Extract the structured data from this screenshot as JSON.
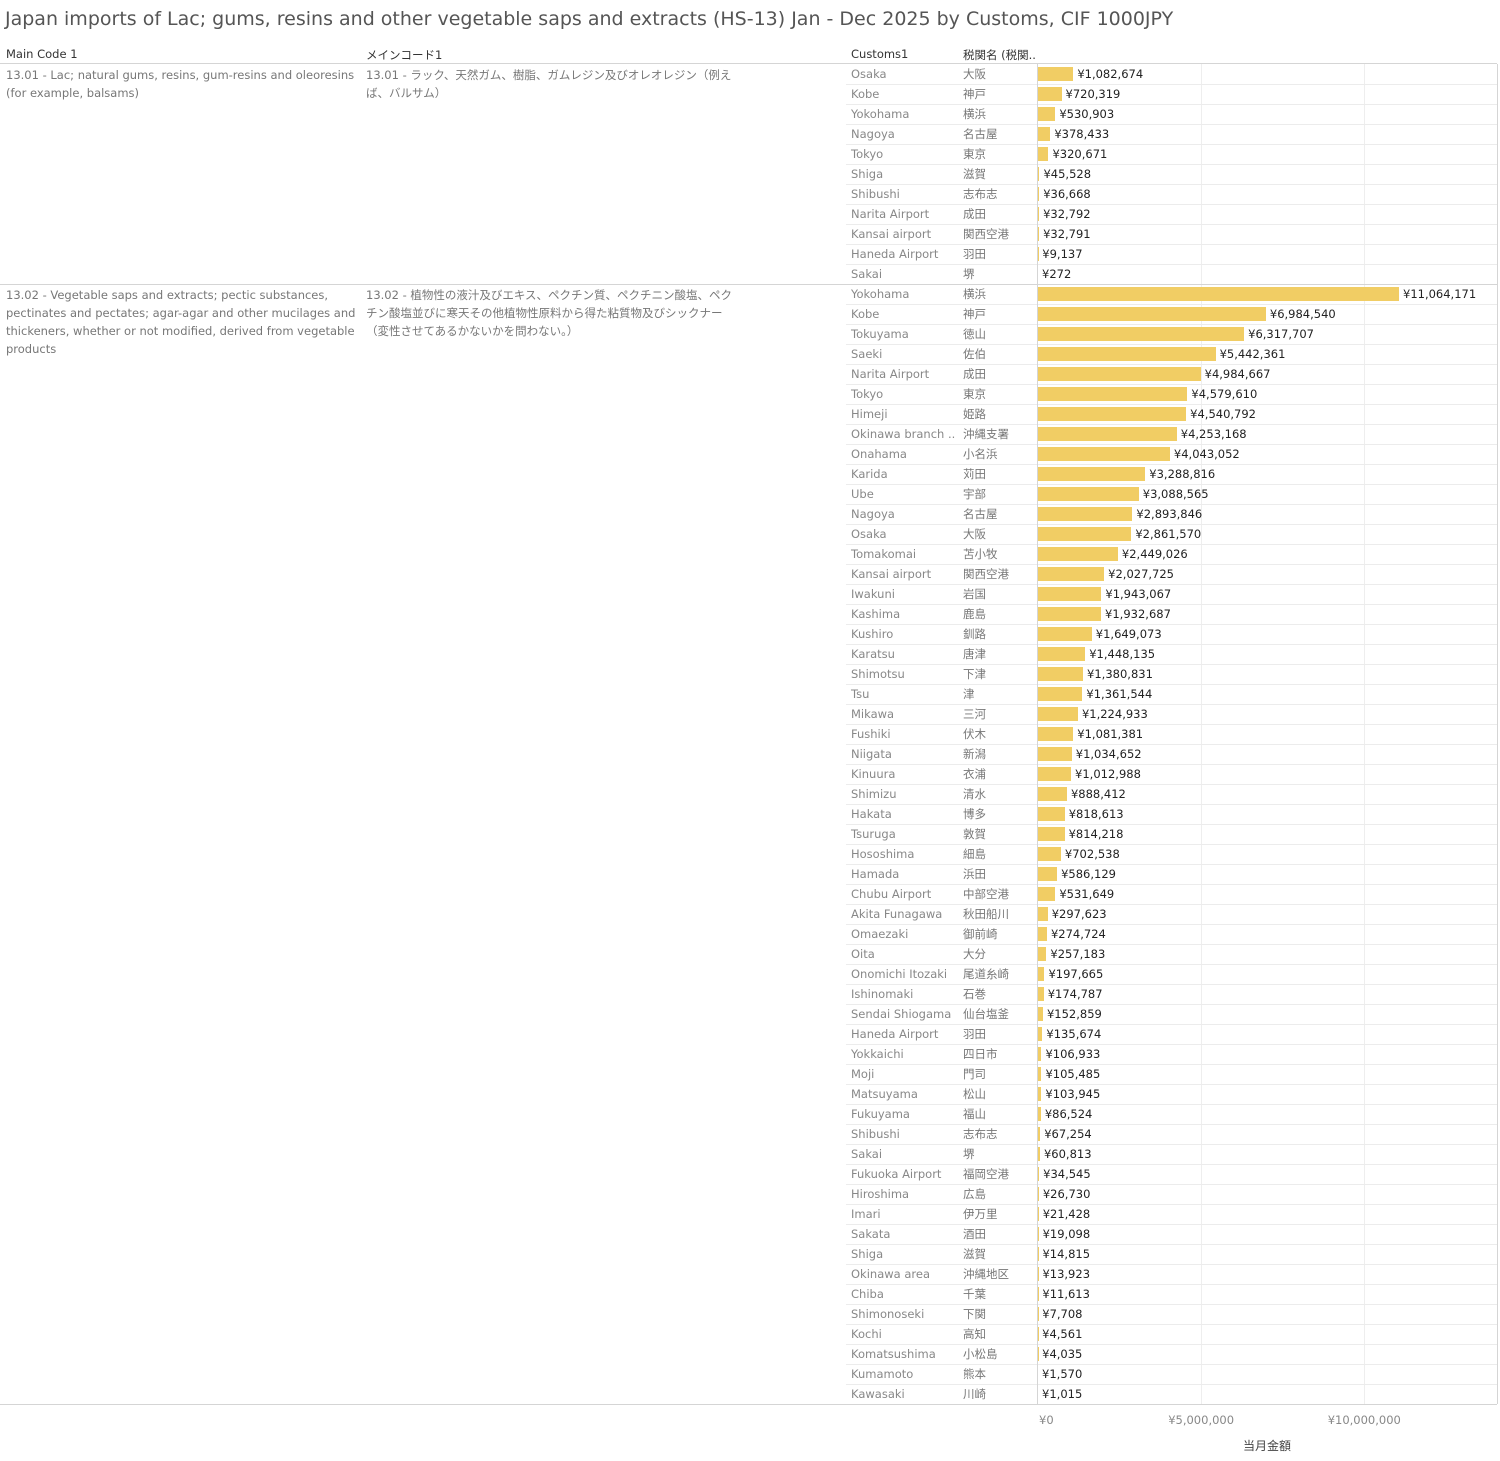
{
  "title": "Japan imports of Lac; gums, resins and other vegetable saps and extracts (HS-13) Jan - Dec 2025 by Customs, CIF 1000JPY",
  "headers": {
    "main_code": "Main Code 1",
    "main_code_jp": "メインコード1",
    "customs": "Customs1",
    "customs_jp": "税関名 (税関.."
  },
  "colors": {
    "bar": "#f1cd64"
  },
  "chart_data": {
    "type": "bar",
    "orientation": "horizontal",
    "title": "Japan imports of Lac; gums, resins and other vegetable saps and extracts (HS-13) Jan - Dec 2025 by Customs, CIF 1000JPY",
    "xlabel": "当月金額",
    "xlim": [
      0,
      14000000
    ],
    "xticks": [
      "¥0",
      "¥5,000,000",
      "¥10,000,000"
    ],
    "xtick_values": [
      0,
      5000000,
      10000000
    ],
    "groups": [
      {
        "code": "13.01 - Lac; natural gums, resins, gum-resins and oleoresins (for example, balsams)",
        "code_jp": "13.01 - ラック、天然ガム、樹脂、ガムレジン及びオレオレジン（例えば、バルサム）",
        "rows": [
          {
            "customs": "Osaka",
            "customs_jp": "大阪",
            "value": 1082674,
            "label": "¥1,082,674"
          },
          {
            "customs": "Kobe",
            "customs_jp": "神戸",
            "value": 720319,
            "label": "¥720,319"
          },
          {
            "customs": "Yokohama",
            "customs_jp": "横浜",
            "value": 530903,
            "label": "¥530,903"
          },
          {
            "customs": "Nagoya",
            "customs_jp": "名古屋",
            "value": 378433,
            "label": "¥378,433"
          },
          {
            "customs": "Tokyo",
            "customs_jp": "東京",
            "value": 320671,
            "label": "¥320,671"
          },
          {
            "customs": "Shiga",
            "customs_jp": "滋賀",
            "value": 45528,
            "label": "¥45,528"
          },
          {
            "customs": "Shibushi",
            "customs_jp": "志布志",
            "value": 36668,
            "label": "¥36,668"
          },
          {
            "customs": "Narita Airport",
            "customs_jp": "成田",
            "value": 32792,
            "label": "¥32,792"
          },
          {
            "customs": "Kansai airport",
            "customs_jp": "関西空港",
            "value": 32791,
            "label": "¥32,791"
          },
          {
            "customs": "Haneda Airport",
            "customs_jp": "羽田",
            "value": 9137,
            "label": "¥9,137"
          },
          {
            "customs": "Sakai",
            "customs_jp": "堺",
            "value": 272,
            "label": "¥272"
          }
        ]
      },
      {
        "code": "13.02 - Vegetable saps and extracts; pectic substances, pectinates and pectates; agar-agar and other mucilages and thickeners, whether or not modified, derived from vegetable products",
        "code_jp": "13.02 - 植物性の液汁及びエキス、ペクチン質、ペクチニン酸塩、ペクチン酸塩並びに寒天その他植物性原料から得た粘質物及びシックナー（変性させてあるかないかを問わない。）",
        "rows": [
          {
            "customs": "Yokohama",
            "customs_jp": "横浜",
            "value": 11064171,
            "label": "¥11,064,171"
          },
          {
            "customs": "Kobe",
            "customs_jp": "神戸",
            "value": 6984540,
            "label": "¥6,984,540"
          },
          {
            "customs": "Tokuyama",
            "customs_jp": "徳山",
            "value": 6317707,
            "label": "¥6,317,707"
          },
          {
            "customs": "Saeki",
            "customs_jp": "佐伯",
            "value": 5442361,
            "label": "¥5,442,361"
          },
          {
            "customs": "Narita Airport",
            "customs_jp": "成田",
            "value": 4984667,
            "label": "¥4,984,667"
          },
          {
            "customs": "Tokyo",
            "customs_jp": "東京",
            "value": 4579610,
            "label": "¥4,579,610"
          },
          {
            "customs": "Himeji",
            "customs_jp": "姫路",
            "value": 4540792,
            "label": "¥4,540,792"
          },
          {
            "customs": "Okinawa branch ..",
            "customs_jp": "沖縄支署",
            "value": 4253168,
            "label": "¥4,253,168"
          },
          {
            "customs": "Onahama",
            "customs_jp": "小名浜",
            "value": 4043052,
            "label": "¥4,043,052"
          },
          {
            "customs": "Karida",
            "customs_jp": "苅田",
            "value": 3288816,
            "label": "¥3,288,816"
          },
          {
            "customs": "Ube",
            "customs_jp": "宇部",
            "value": 3088565,
            "label": "¥3,088,565"
          },
          {
            "customs": "Nagoya",
            "customs_jp": "名古屋",
            "value": 2893846,
            "label": "¥2,893,846"
          },
          {
            "customs": "Osaka",
            "customs_jp": "大阪",
            "value": 2861570,
            "label": "¥2,861,570"
          },
          {
            "customs": "Tomakomai",
            "customs_jp": "苫小牧",
            "value": 2449026,
            "label": "¥2,449,026"
          },
          {
            "customs": "Kansai airport",
            "customs_jp": "関西空港",
            "value": 2027725,
            "label": "¥2,027,725"
          },
          {
            "customs": "Iwakuni",
            "customs_jp": "岩国",
            "value": 1943067,
            "label": "¥1,943,067"
          },
          {
            "customs": "Kashima",
            "customs_jp": "鹿島",
            "value": 1932687,
            "label": "¥1,932,687"
          },
          {
            "customs": "Kushiro",
            "customs_jp": "釧路",
            "value": 1649073,
            "label": "¥1,649,073"
          },
          {
            "customs": "Karatsu",
            "customs_jp": "唐津",
            "value": 1448135,
            "label": "¥1,448,135"
          },
          {
            "customs": "Shimotsu",
            "customs_jp": "下津",
            "value": 1380831,
            "label": "¥1,380,831"
          },
          {
            "customs": "Tsu",
            "customs_jp": "津",
            "value": 1361544,
            "label": "¥1,361,544"
          },
          {
            "customs": "Mikawa",
            "customs_jp": "三河",
            "value": 1224933,
            "label": "¥1,224,933"
          },
          {
            "customs": "Fushiki",
            "customs_jp": "伏木",
            "value": 1081381,
            "label": "¥1,081,381"
          },
          {
            "customs": "Niigata",
            "customs_jp": "新潟",
            "value": 1034652,
            "label": "¥1,034,652"
          },
          {
            "customs": "Kinuura",
            "customs_jp": "衣浦",
            "value": 1012988,
            "label": "¥1,012,988"
          },
          {
            "customs": "Shimizu",
            "customs_jp": "清水",
            "value": 888412,
            "label": "¥888,412"
          },
          {
            "customs": "Hakata",
            "customs_jp": "博多",
            "value": 818613,
            "label": "¥818,613"
          },
          {
            "customs": "Tsuruga",
            "customs_jp": "敦賀",
            "value": 814218,
            "label": "¥814,218"
          },
          {
            "customs": "Hososhima",
            "customs_jp": "細島",
            "value": 702538,
            "label": "¥702,538"
          },
          {
            "customs": "Hamada",
            "customs_jp": "浜田",
            "value": 586129,
            "label": "¥586,129"
          },
          {
            "customs": "Chubu Airport",
            "customs_jp": "中部空港",
            "value": 531649,
            "label": "¥531,649"
          },
          {
            "customs": "Akita Funagawa",
            "customs_jp": "秋田船川",
            "value": 297623,
            "label": "¥297,623"
          },
          {
            "customs": "Omaezaki",
            "customs_jp": "御前崎",
            "value": 274724,
            "label": "¥274,724"
          },
          {
            "customs": "Oita",
            "customs_jp": "大分",
            "value": 257183,
            "label": "¥257,183"
          },
          {
            "customs": "Onomichi Itozaki",
            "customs_jp": "尾道糸崎",
            "value": 197665,
            "label": "¥197,665"
          },
          {
            "customs": "Ishinomaki",
            "customs_jp": "石巻",
            "value": 174787,
            "label": "¥174,787"
          },
          {
            "customs": "Sendai Shiogama",
            "customs_jp": "仙台塩釜",
            "value": 152859,
            "label": "¥152,859"
          },
          {
            "customs": "Haneda Airport",
            "customs_jp": "羽田",
            "value": 135674,
            "label": "¥135,674"
          },
          {
            "customs": "Yokkaichi",
            "customs_jp": "四日市",
            "value": 106933,
            "label": "¥106,933"
          },
          {
            "customs": "Moji",
            "customs_jp": "門司",
            "value": 105485,
            "label": "¥105,485"
          },
          {
            "customs": "Matsuyama",
            "customs_jp": "松山",
            "value": 103945,
            "label": "¥103,945"
          },
          {
            "customs": "Fukuyama",
            "customs_jp": "福山",
            "value": 86524,
            "label": "¥86,524"
          },
          {
            "customs": "Shibushi",
            "customs_jp": "志布志",
            "value": 67254,
            "label": "¥67,254"
          },
          {
            "customs": "Sakai",
            "customs_jp": "堺",
            "value": 60813,
            "label": "¥60,813"
          },
          {
            "customs": "Fukuoka Airport",
            "customs_jp": "福岡空港",
            "value": 34545,
            "label": "¥34,545"
          },
          {
            "customs": "Hiroshima",
            "customs_jp": "広島",
            "value": 26730,
            "label": "¥26,730"
          },
          {
            "customs": "Imari",
            "customs_jp": "伊万里",
            "value": 21428,
            "label": "¥21,428"
          },
          {
            "customs": "Sakata",
            "customs_jp": "酒田",
            "value": 19098,
            "label": "¥19,098"
          },
          {
            "customs": "Shiga",
            "customs_jp": "滋賀",
            "value": 14815,
            "label": "¥14,815"
          },
          {
            "customs": "Okinawa area",
            "customs_jp": "沖縄地区",
            "value": 13923,
            "label": "¥13,923"
          },
          {
            "customs": "Chiba",
            "customs_jp": "千葉",
            "value": 11613,
            "label": "¥11,613"
          },
          {
            "customs": "Shimonoseki",
            "customs_jp": "下関",
            "value": 7708,
            "label": "¥7,708"
          },
          {
            "customs": "Kochi",
            "customs_jp": "高知",
            "value": 4561,
            "label": "¥4,561"
          },
          {
            "customs": "Komatsushima",
            "customs_jp": "小松島",
            "value": 4035,
            "label": "¥4,035"
          },
          {
            "customs": "Kumamoto",
            "customs_jp": "熊本",
            "value": 1570,
            "label": "¥1,570"
          },
          {
            "customs": "Kawasaki",
            "customs_jp": "川崎",
            "value": 1015,
            "label": "¥1,015"
          }
        ]
      }
    ]
  }
}
